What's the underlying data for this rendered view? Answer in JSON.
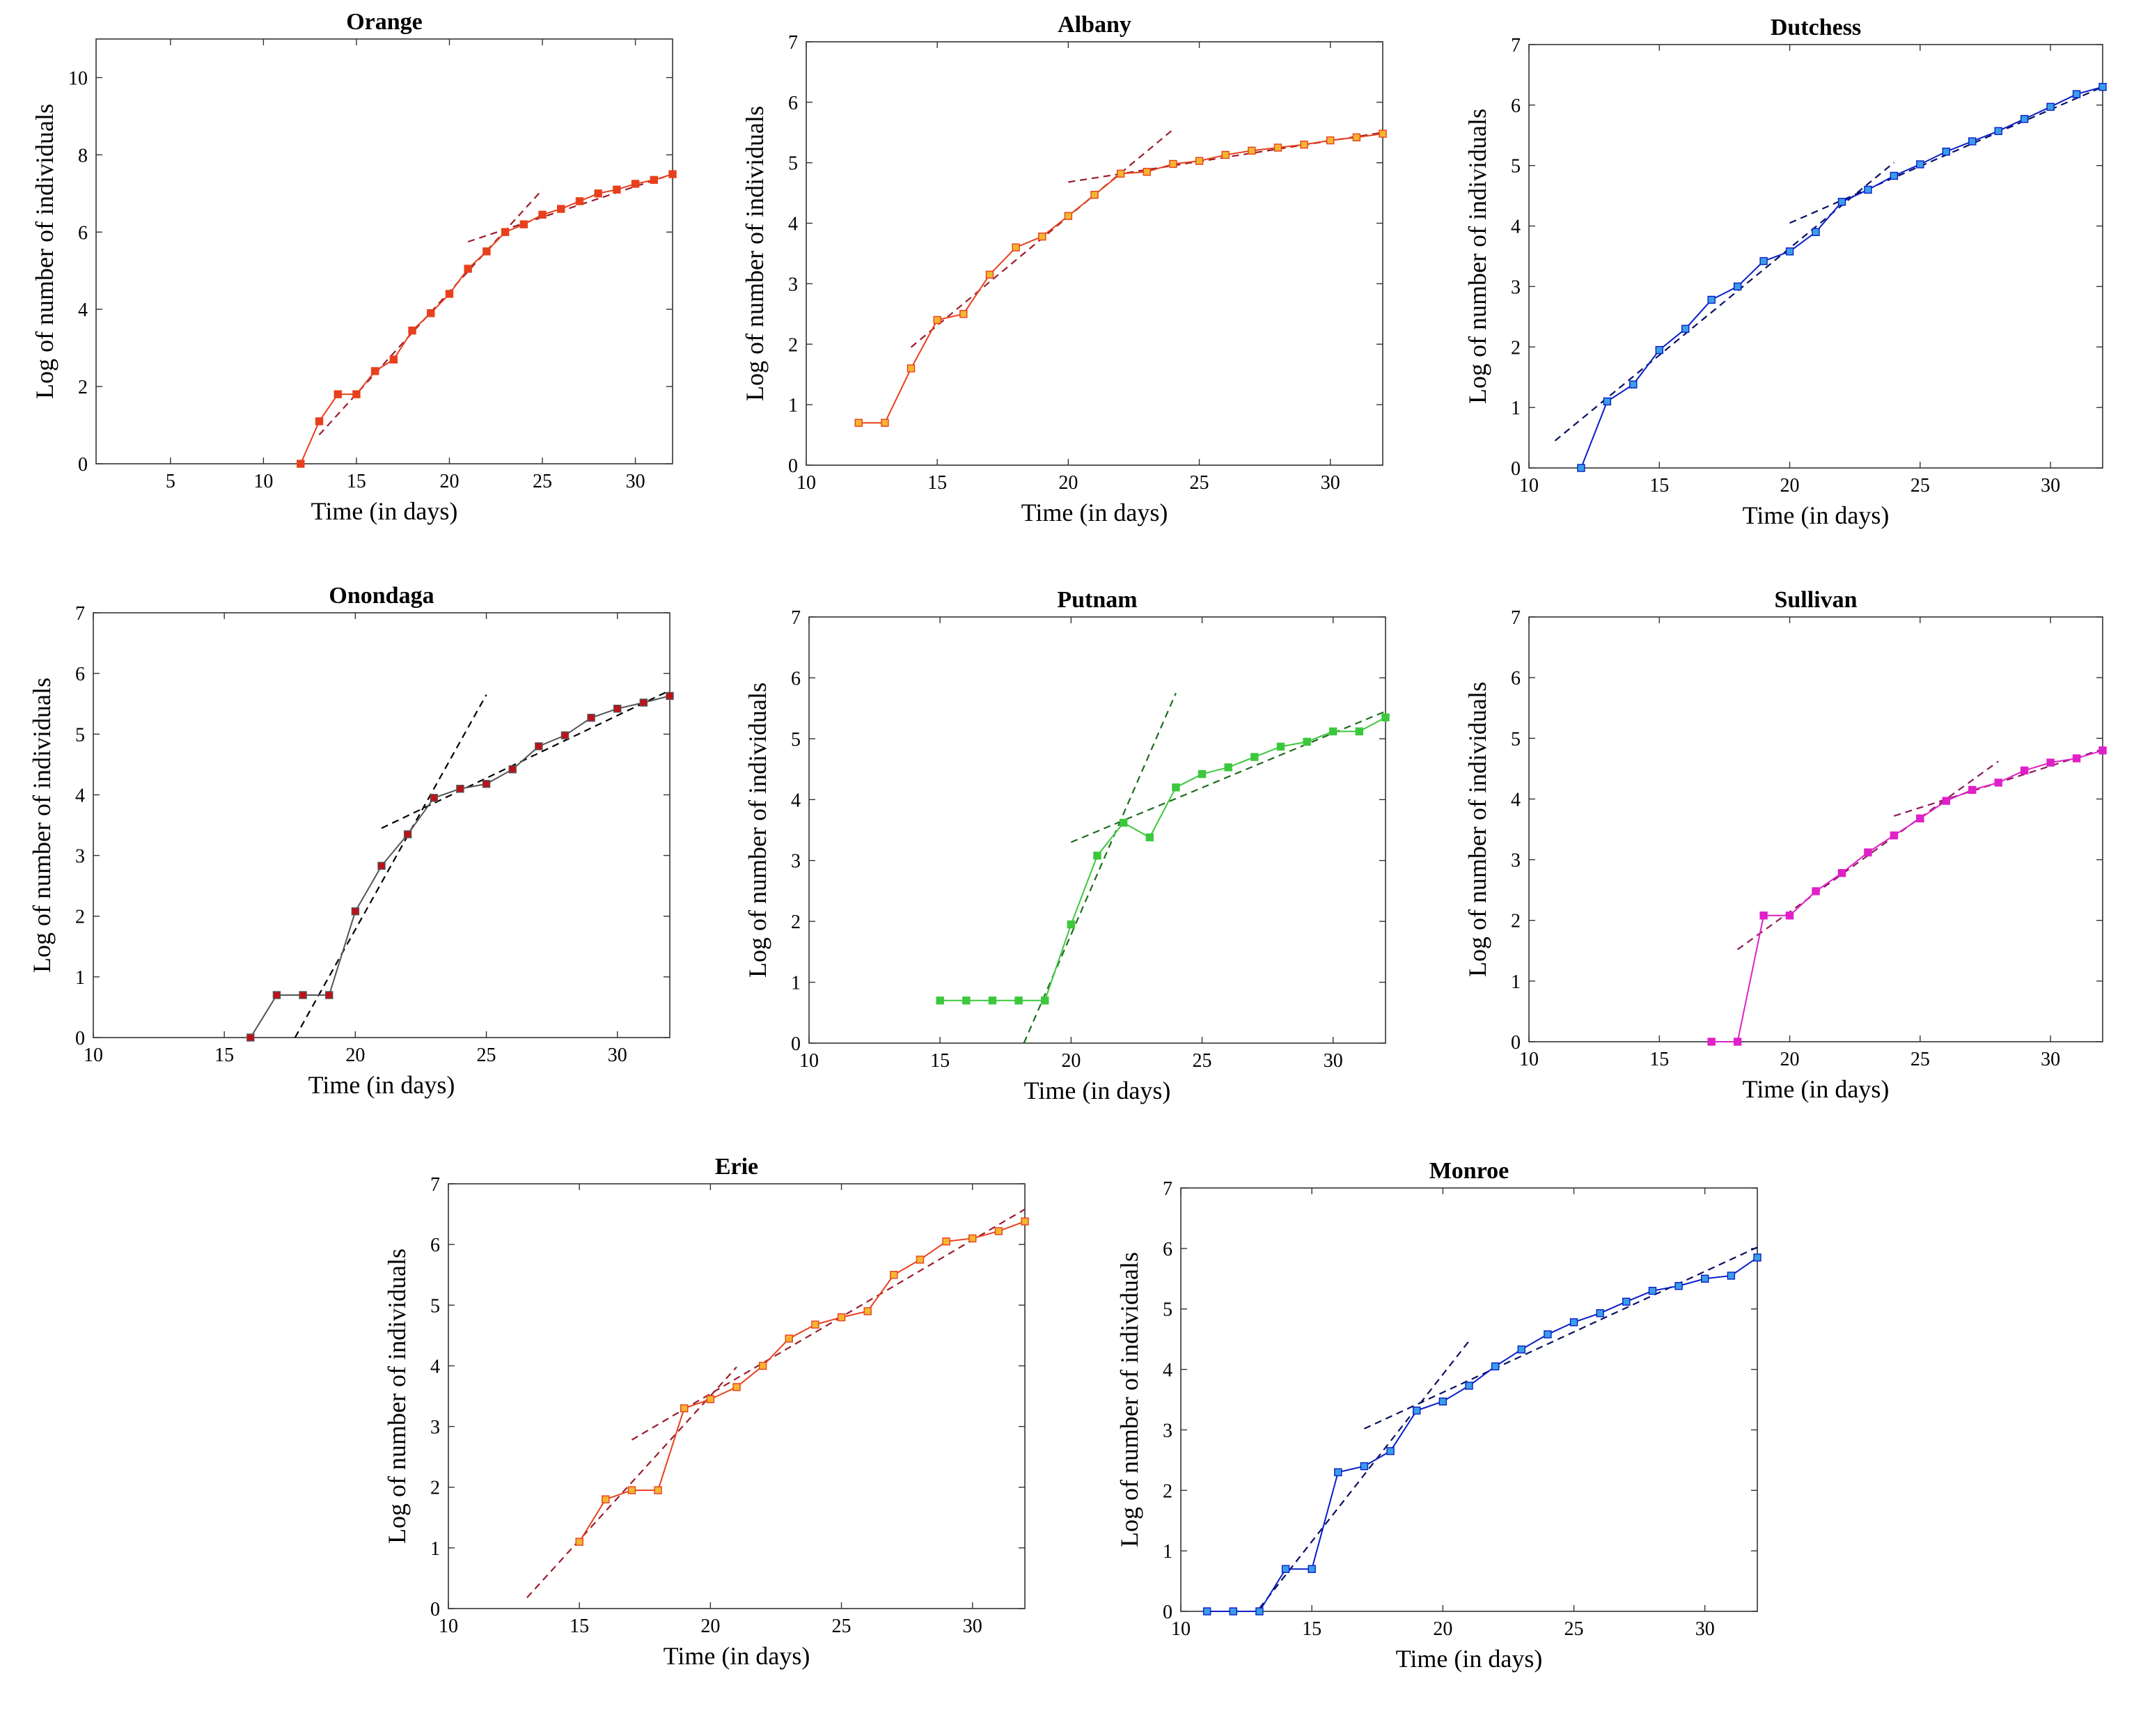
{
  "figure": {
    "description_title": ""
  },
  "chart_data": [
    {
      "type": "line",
      "title": "Orange",
      "xlabel": "Time (in days)",
      "ylabel": "Log of number of individuals",
      "xlim": [
        1,
        32
      ],
      "ylim": [
        0,
        11
      ],
      "xticks": [
        5,
        10,
        15,
        20,
        25,
        30
      ],
      "yticks": [
        0,
        2,
        4,
        6,
        8,
        10
      ],
      "color": "#e8401c",
      "marker_fill": "#e8401c",
      "series": [
        {
          "name": "Orange",
          "x": [
            12,
            13,
            14,
            15,
            16,
            17,
            18,
            19,
            20,
            21,
            22,
            23,
            24,
            25,
            26,
            27,
            28,
            29,
            30,
            31,
            32
          ],
          "values": [
            0,
            1.1,
            1.8,
            1.8,
            2.4,
            2.7,
            3.45,
            3.9,
            4.4,
            5.05,
            5.5,
            6.0,
            6.2,
            6.45,
            6.6,
            6.8,
            7.0,
            7.1,
            7.25,
            7.35,
            7.5
          ]
        }
      ],
      "fits": [
        {
          "x": [
            13,
            25
          ],
          "y": [
            0.75,
            7.1
          ]
        },
        {
          "x": [
            21,
            32
          ],
          "y": [
            5.75,
            7.5
          ]
        }
      ],
      "fit_color": "#9b1c2c"
    },
    {
      "type": "line",
      "title": "Albany",
      "xlabel": "Time (in days)",
      "ylabel": "Log of number of individuals",
      "xlim": [
        10,
        32
      ],
      "ylim": [
        0,
        7
      ],
      "xticks": [
        10,
        15,
        20,
        25,
        30
      ],
      "yticks": [
        0,
        1,
        2,
        3,
        4,
        5,
        6,
        7
      ],
      "color": "#e8401c",
      "marker_fill": "#f5b531",
      "series": [
        {
          "name": "Albany",
          "x": [
            12,
            13,
            14,
            15,
            16,
            17,
            18,
            19,
            20,
            21,
            22,
            23,
            24,
            25,
            26,
            27,
            28,
            29,
            30,
            31,
            32
          ],
          "values": [
            0.7,
            0.7,
            1.6,
            2.4,
            2.5,
            3.15,
            3.6,
            3.78,
            4.12,
            4.47,
            4.82,
            4.85,
            4.98,
            5.03,
            5.13,
            5.2,
            5.25,
            5.3,
            5.37,
            5.42,
            5.48
          ]
        }
      ],
      "fits": [
        {
          "x": [
            14,
            24
          ],
          "y": [
            1.95,
            5.55
          ]
        },
        {
          "x": [
            20,
            32
          ],
          "y": [
            4.68,
            5.5
          ]
        }
      ],
      "fit_color": "#9b1c2c"
    },
    {
      "type": "line",
      "title": "Dutchess",
      "xlabel": "Time (in days)",
      "ylabel": "Log of number of individuals",
      "xlim": [
        10,
        32
      ],
      "ylim": [
        0,
        7
      ],
      "xticks": [
        10,
        15,
        20,
        25,
        30
      ],
      "yticks": [
        0,
        1,
        2,
        3,
        4,
        5,
        6,
        7
      ],
      "color": "#0a1ec8",
      "marker_fill": "#3a9ee8",
      "series": [
        {
          "name": "Dutchess",
          "x": [
            12,
            13,
            14,
            15,
            16,
            17,
            18,
            19,
            20,
            21,
            22,
            23,
            24,
            25,
            26,
            27,
            28,
            29,
            30,
            31,
            32
          ],
          "values": [
            0,
            1.1,
            1.38,
            1.95,
            2.3,
            2.78,
            3.0,
            3.42,
            3.58,
            3.9,
            4.4,
            4.6,
            4.83,
            5.02,
            5.23,
            5.4,
            5.57,
            5.77,
            5.97,
            6.18,
            6.3
          ]
        }
      ],
      "fits": [
        {
          "x": [
            11,
            24
          ],
          "y": [
            0.45,
            5.05
          ]
        },
        {
          "x": [
            20,
            32
          ],
          "y": [
            4.05,
            6.3
          ]
        }
      ],
      "fit_color": "#0a1060"
    },
    {
      "type": "line",
      "title": "Onondaga",
      "xlabel": "Time (in days)",
      "ylabel": "Log of number of individuals",
      "xlim": [
        10,
        32
      ],
      "ylim": [
        0,
        7
      ],
      "xticks": [
        10,
        15,
        20,
        25,
        30
      ],
      "yticks": [
        0,
        1,
        2,
        3,
        4,
        5,
        6,
        7
      ],
      "color": "#555555",
      "marker_fill": "#c0101a",
      "series": [
        {
          "name": "Onondaga",
          "x": [
            16,
            17,
            18,
            19,
            20,
            21,
            22,
            23,
            24,
            25,
            26,
            27,
            28,
            29,
            30,
            31,
            32
          ],
          "values": [
            0,
            0.7,
            0.7,
            0.7,
            2.08,
            2.83,
            3.35,
            3.95,
            4.1,
            4.18,
            4.42,
            4.8,
            4.98,
            5.27,
            5.42,
            5.52,
            5.63
          ]
        }
      ],
      "fits": [
        {
          "x": [
            17.7,
            25
          ],
          "y": [
            0,
            5.65
          ]
        },
        {
          "x": [
            21,
            32
          ],
          "y": [
            3.45,
            5.72
          ]
        }
      ],
      "fit_color": "#000000"
    },
    {
      "type": "line",
      "title": "Putnam",
      "xlabel": "Time (in days)",
      "ylabel": "Log of number of individuals",
      "xlim": [
        10,
        32
      ],
      "ylim": [
        0,
        7
      ],
      "xticks": [
        10,
        15,
        20,
        25,
        30
      ],
      "yticks": [
        0,
        1,
        2,
        3,
        4,
        5,
        6,
        7
      ],
      "color": "#3cc83c",
      "marker_fill": "#3cc83c",
      "series": [
        {
          "name": "Putnam",
          "x": [
            15,
            16,
            17,
            18,
            19,
            20,
            21,
            22,
            23,
            24,
            25,
            26,
            27,
            28,
            29,
            30,
            31,
            32
          ],
          "values": [
            0.7,
            0.7,
            0.7,
            0.7,
            0.7,
            1.95,
            3.08,
            3.62,
            3.38,
            4.2,
            4.42,
            4.53,
            4.7,
            4.87,
            4.95,
            5.12,
            5.12,
            5.35
          ]
        }
      ],
      "fits": [
        {
          "x": [
            18.2,
            24
          ],
          "y": [
            0,
            5.75
          ]
        },
        {
          "x": [
            20,
            32
          ],
          "y": [
            3.3,
            5.45
          ]
        }
      ],
      "fit_color": "#1f6a1f"
    },
    {
      "type": "line",
      "title": "Sullivan",
      "xlabel": "Time (in days)",
      "ylabel": "Log of number of individuals",
      "xlim": [
        10,
        32
      ],
      "ylim": [
        0,
        7
      ],
      "xticks": [
        10,
        15,
        20,
        25,
        30
      ],
      "yticks": [
        0,
        1,
        2,
        3,
        4,
        5,
        6,
        7
      ],
      "color": "#e020c8",
      "marker_fill": "#e020c8",
      "series": [
        {
          "name": "Sullivan",
          "x": [
            17,
            18,
            19,
            20,
            21,
            22,
            23,
            24,
            25,
            26,
            27,
            28,
            29,
            30,
            31,
            32
          ],
          "values": [
            0,
            0,
            2.08,
            2.08,
            2.48,
            2.78,
            3.12,
            3.4,
            3.68,
            3.97,
            4.15,
            4.27,
            4.47,
            4.6,
            4.67,
            4.8
          ]
        }
      ],
      "fits": [
        {
          "x": [
            18,
            28
          ],
          "y": [
            1.52,
            4.62
          ]
        },
        {
          "x": [
            24,
            32
          ],
          "y": [
            3.72,
            4.82
          ]
        }
      ],
      "fit_color": "#8c1a5a"
    },
    {
      "type": "line",
      "title": "Erie",
      "xlabel": "Time (in days)",
      "ylabel": "Log of number of individuals",
      "xlim": [
        10,
        32
      ],
      "ylim": [
        0,
        7
      ],
      "xticks": [
        10,
        15,
        20,
        25,
        30
      ],
      "yticks": [
        0,
        1,
        2,
        3,
        4,
        5,
        6,
        7
      ],
      "color": "#e8401c",
      "marker_fill": "#f5b531",
      "series": [
        {
          "name": "Erie",
          "x": [
            15,
            16,
            17,
            18,
            19,
            20,
            21,
            22,
            23,
            24,
            25,
            26,
            27,
            28,
            29,
            30,
            31,
            32
          ],
          "values": [
            1.1,
            1.8,
            1.95,
            1.95,
            3.3,
            3.45,
            3.65,
            4.0,
            4.45,
            4.68,
            4.8,
            4.9,
            5.5,
            5.75,
            6.05,
            6.1,
            6.22,
            6.38
          ]
        }
      ],
      "fits": [
        {
          "x": [
            13,
            21
          ],
          "y": [
            0.18,
            3.98
          ]
        },
        {
          "x": [
            17,
            32
          ],
          "y": [
            2.78,
            6.58
          ]
        }
      ],
      "fit_color": "#9b1c2c"
    },
    {
      "type": "line",
      "title": "Monroe",
      "xlabel": "Time (in days)",
      "ylabel": "Log of number of individuals",
      "xlim": [
        10,
        32
      ],
      "ylim": [
        0,
        7
      ],
      "xticks": [
        10,
        15,
        20,
        25,
        30
      ],
      "yticks": [
        0,
        1,
        2,
        3,
        4,
        5,
        6,
        7
      ],
      "color": "#0a1ec8",
      "marker_fill": "#3a9ee8",
      "series": [
        {
          "name": "Monroe",
          "x": [
            11,
            12,
            13,
            14,
            15,
            16,
            17,
            18,
            19,
            20,
            21,
            22,
            23,
            24,
            25,
            26,
            27,
            28,
            29,
            30,
            31,
            32
          ],
          "values": [
            0,
            0,
            0,
            0.7,
            0.7,
            2.3,
            2.4,
            2.65,
            3.32,
            3.47,
            3.73,
            4.05,
            4.33,
            4.58,
            4.78,
            4.93,
            5.12,
            5.3,
            5.38,
            5.5,
            5.55,
            5.85
          ]
        }
      ],
      "fits": [
        {
          "x": [
            13,
            21
          ],
          "y": [
            0.05,
            4.47
          ]
        },
        {
          "x": [
            17,
            32
          ],
          "y": [
            3.02,
            6.02
          ]
        }
      ],
      "fit_color": "#0a1060"
    }
  ]
}
